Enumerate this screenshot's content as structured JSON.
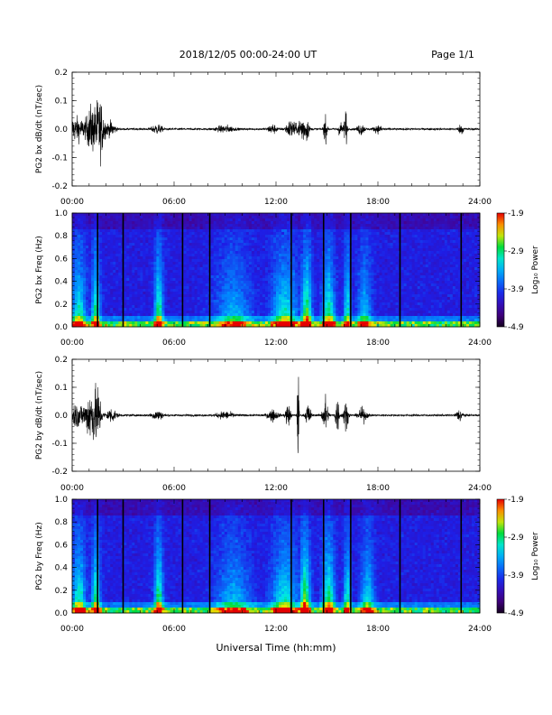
{
  "header": {
    "title": "2018/12/05  00:00-24:00 UT",
    "page": "Page 1/1"
  },
  "footer": {
    "xlabel": "Universal Time (hh:mm)"
  },
  "time_ticks": [
    "00:00",
    "06:00",
    "12:00",
    "18:00",
    "24:00"
  ],
  "colorbar": {
    "title": "Log₁₀ Power",
    "ticks": [
      "-1.9",
      "-2.9",
      "-3.9",
      "-4.9"
    ]
  },
  "chart_data": [
    {
      "type": "line",
      "id": "bx-dbdt",
      "ylabel": "PG2 bx dB/dt (nT/sec)",
      "ylim": [
        -0.2,
        0.2
      ],
      "y_ticks": [
        "0.2",
        "0.1",
        "0.0",
        "-0.1",
        "-0.2"
      ],
      "x_hours": [
        0,
        24
      ],
      "baseline_noise": 0.004,
      "bursts": [
        {
          "t": 0.2,
          "w": 1.4,
          "amp": 0.05
        },
        {
          "t": 1.1,
          "w": 0.5,
          "amp": 0.08
        },
        {
          "t": 1.6,
          "w": 0.6,
          "amp": 0.13
        },
        {
          "t": 2.3,
          "w": 0.5,
          "amp": 0.03
        },
        {
          "t": 5.0,
          "w": 0.6,
          "amp": 0.02
        },
        {
          "t": 9.0,
          "w": 1.0,
          "amp": 0.015
        },
        {
          "t": 11.8,
          "w": 0.5,
          "amp": 0.02
        },
        {
          "t": 12.9,
          "w": 0.6,
          "amp": 0.04
        },
        {
          "t": 13.5,
          "w": 0.3,
          "amp": 0.07
        },
        {
          "t": 13.8,
          "w": 0.3,
          "amp": 0.05
        },
        {
          "t": 14.9,
          "w": 0.2,
          "amp": 0.055
        },
        {
          "t": 15.8,
          "w": 0.3,
          "amp": 0.03
        },
        {
          "t": 16.1,
          "w": 0.15,
          "amp": 0.1
        },
        {
          "t": 17.0,
          "w": 0.4,
          "amp": 0.025
        },
        {
          "t": 18.0,
          "w": 0.5,
          "amp": 0.015
        },
        {
          "t": 22.9,
          "w": 0.3,
          "amp": 0.02
        }
      ]
    },
    {
      "type": "heatmap",
      "id": "bx-spectrogram",
      "ylabel": "PG2 bx Freq (Hz)",
      "ylim": [
        0.0,
        1.0
      ],
      "y_ticks": [
        "1.0",
        "0.8",
        "0.6",
        "0.4",
        "0.2",
        "0.0"
      ],
      "color_range": [
        -4.9,
        -1.9
      ],
      "data_gaps_hours": [
        1.5,
        3.0,
        6.5,
        8.1,
        12.9,
        14.8,
        16.4,
        19.3,
        22.9
      ],
      "activity": [
        {
          "t": 0.4,
          "w": 0.8,
          "level": 0.55
        },
        {
          "t": 1.4,
          "w": 0.5,
          "level": 0.6
        },
        {
          "t": 5.1,
          "w": 0.5,
          "level": 0.65
        },
        {
          "t": 9.5,
          "w": 2.0,
          "level": 0.35
        },
        {
          "t": 12.5,
          "w": 1.5,
          "level": 0.5
        },
        {
          "t": 13.8,
          "w": 0.6,
          "level": 0.7
        },
        {
          "t": 15.1,
          "w": 0.7,
          "level": 0.6
        },
        {
          "t": 16.2,
          "w": 0.4,
          "level": 0.55
        },
        {
          "t": 17.2,
          "w": 0.8,
          "level": 0.4
        }
      ]
    },
    {
      "type": "line",
      "id": "by-dbdt",
      "ylabel": "PG2 by dB/dt (nT/sec)",
      "ylim": [
        -0.2,
        0.2
      ],
      "y_ticks": [
        "0.2",
        "0.1",
        "0.0",
        "-0.1",
        "-0.2"
      ],
      "x_hours": [
        0,
        24
      ],
      "baseline_noise": 0.004,
      "bursts": [
        {
          "t": 0.3,
          "w": 1.5,
          "amp": 0.05
        },
        {
          "t": 1.1,
          "w": 0.5,
          "amp": 0.1
        },
        {
          "t": 1.5,
          "w": 0.4,
          "amp": 0.12
        },
        {
          "t": 2.3,
          "w": 0.6,
          "amp": 0.03
        },
        {
          "t": 5.0,
          "w": 0.7,
          "amp": 0.02
        },
        {
          "t": 9.0,
          "w": 1.0,
          "amp": 0.015
        },
        {
          "t": 11.8,
          "w": 0.6,
          "amp": 0.025
        },
        {
          "t": 12.7,
          "w": 0.3,
          "amp": 0.05
        },
        {
          "t": 13.3,
          "w": 0.1,
          "amp": 0.2
        },
        {
          "t": 13.9,
          "w": 0.3,
          "amp": 0.05
        },
        {
          "t": 14.9,
          "w": 0.3,
          "amp": 0.09
        },
        {
          "t": 15.6,
          "w": 0.2,
          "amp": 0.1
        },
        {
          "t": 16.1,
          "w": 0.3,
          "amp": 0.06
        },
        {
          "t": 17.1,
          "w": 0.5,
          "amp": 0.03
        },
        {
          "t": 22.8,
          "w": 0.4,
          "amp": 0.025
        }
      ]
    },
    {
      "type": "heatmap",
      "id": "by-spectrogram",
      "ylabel": "PG2 by Freq (Hz)",
      "ylim": [
        0.0,
        1.0
      ],
      "y_ticks": [
        "1.0",
        "0.8",
        "0.6",
        "0.4",
        "0.2",
        "0.0"
      ],
      "color_range": [
        -4.9,
        -1.9
      ],
      "data_gaps_hours": [
        1.5,
        3.0,
        6.5,
        8.1,
        12.9,
        14.8,
        16.4,
        19.3,
        22.9
      ],
      "activity": [
        {
          "t": 0.4,
          "w": 0.8,
          "level": 0.55
        },
        {
          "t": 1.4,
          "w": 0.5,
          "level": 0.6
        },
        {
          "t": 5.1,
          "w": 0.5,
          "level": 0.65
        },
        {
          "t": 9.5,
          "w": 2.0,
          "level": 0.35
        },
        {
          "t": 12.5,
          "w": 1.5,
          "level": 0.5
        },
        {
          "t": 13.7,
          "w": 0.6,
          "level": 0.75
        },
        {
          "t": 15.1,
          "w": 0.7,
          "level": 0.65
        },
        {
          "t": 16.2,
          "w": 0.4,
          "level": 0.55
        },
        {
          "t": 17.4,
          "w": 0.8,
          "level": 0.45
        }
      ]
    }
  ]
}
